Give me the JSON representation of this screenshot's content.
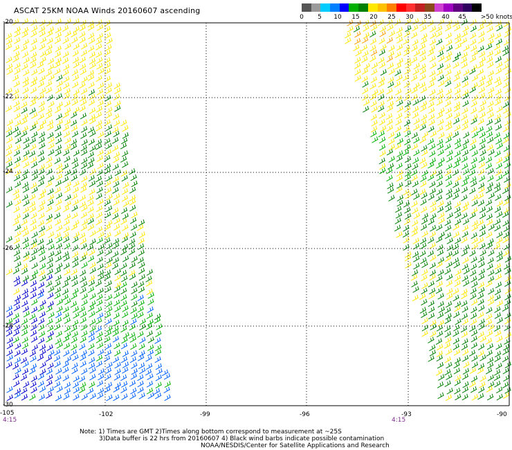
{
  "title": "ASCAT 25KM NOAA Winds 20160607 ascending",
  "legend": {
    "labels": [
      "0",
      "5",
      "10",
      "15",
      "20",
      "25",
      "30",
      "35",
      "40",
      "45",
      ">50 knots"
    ],
    "colors": [
      "#555555",
      "#9a9a9a",
      "#00ccff",
      "#0080ff",
      "#0000ff",
      "#00b000",
      "#008000",
      "#ffe800",
      "#ffc000",
      "#ff8000",
      "#ff0000",
      "#ff3030",
      "#c02020",
      "#8b4a1a",
      "#d040d0",
      "#a000c0",
      "#600080",
      "#300060",
      "#000000"
    ]
  },
  "map": {
    "lat_labels": [
      "-20",
      "-22",
      "-24",
      "-26",
      "-28",
      "-30"
    ],
    "lon_labels": [
      "-105",
      "-102",
      "-99",
      "-96",
      "-93",
      "-90"
    ],
    "time_labels": [
      "4:15",
      "4:15"
    ]
  },
  "swaths": [
    {
      "name": "west-swath",
      "colors_by_band": [
        "#ffe800",
        "#ffe800",
        "#008000",
        "#ffe800",
        "#008000",
        "#00b000",
        "#0060ff"
      ]
    },
    {
      "name": "east-swath",
      "colors_by_band": [
        "#ffe800",
        "#ffe800",
        "#00b000",
        "#008000",
        "#008000",
        "#008000",
        "#008000"
      ]
    }
  ],
  "notes": [
    "Note: 1) Times are GMT 2)Times along bottom correspond to measurement at ~25S",
    "3)Data buffer is 22 hrs from 20160607 4) Black wind barbs indicate possible contamination",
    "NOAA/NESDIS/Center for Satellite Applications and Research"
  ]
}
